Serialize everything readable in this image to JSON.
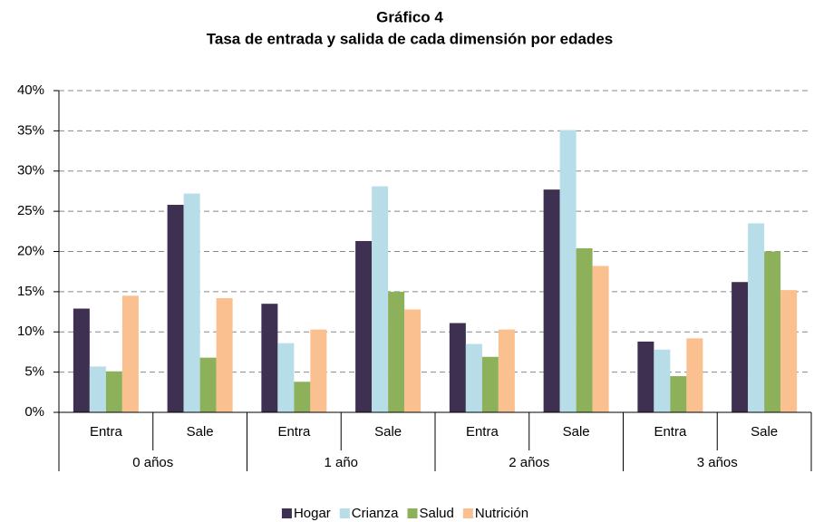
{
  "chart_data": {
    "type": "bar",
    "title": "Gráfico 4",
    "subtitle": "Tasa de entrada y salida de cada dimensión por edades",
    "categories": [
      "Entra",
      "Sale",
      "Entra",
      "Sale",
      "Entra",
      "Sale",
      "Entra",
      "Sale"
    ],
    "groups": [
      "0 años",
      "1 año",
      "2 años",
      "3 años"
    ],
    "series": [
      {
        "name": "Hogar",
        "color": "#3d3051",
        "values": [
          12.9,
          25.8,
          13.5,
          21.3,
          11.1,
          27.7,
          8.8,
          16.2
        ]
      },
      {
        "name": "Crianza",
        "color": "#b7dde8",
        "values": [
          5.7,
          27.2,
          8.6,
          28.1,
          8.5,
          35.1,
          7.8,
          23.5
        ]
      },
      {
        "name": "Salud",
        "color": "#8db05a",
        "values": [
          5.1,
          6.8,
          3.8,
          15.0,
          6.9,
          20.4,
          4.5,
          20.0
        ]
      },
      {
        "name": "Nutrición",
        "color": "#fac090",
        "values": [
          14.5,
          14.2,
          10.3,
          12.8,
          10.3,
          18.2,
          9.2,
          15.2
        ]
      }
    ],
    "ylim": [
      0,
      40
    ],
    "yticks": [
      {
        "value": 0,
        "label": "0%"
      },
      {
        "value": 5,
        "label": "5%"
      },
      {
        "value": 10,
        "label": "10%"
      },
      {
        "value": 15,
        "label": "15%"
      },
      {
        "value": 20,
        "label": "20%"
      },
      {
        "value": 25,
        "label": "25%"
      },
      {
        "value": 30,
        "label": "30%"
      },
      {
        "value": 35,
        "label": "35%"
      },
      {
        "value": 40,
        "label": "40%"
      }
    ],
    "grid": true,
    "legend": "bottom"
  }
}
